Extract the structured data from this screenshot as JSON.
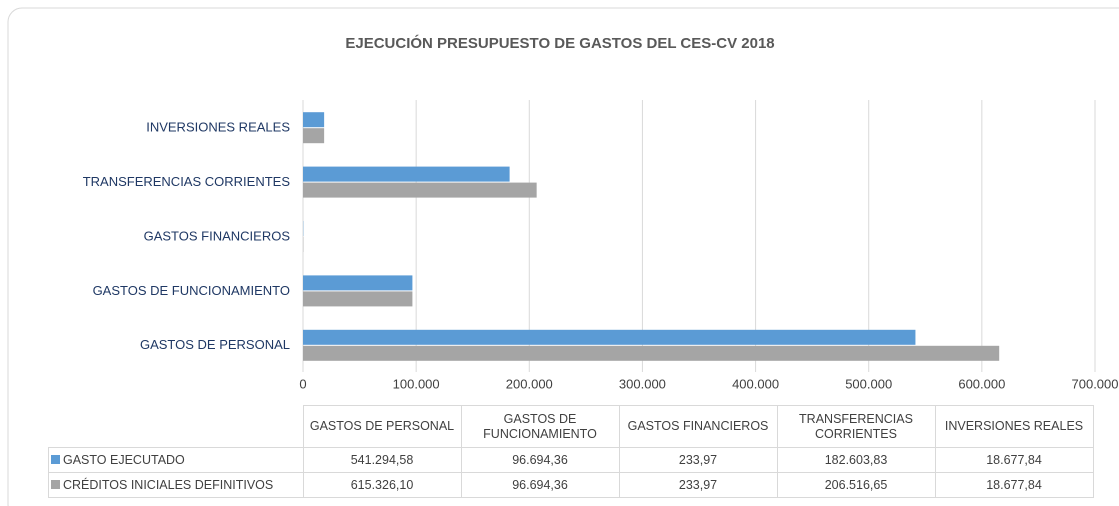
{
  "chart_data": {
    "type": "bar",
    "orientation": "horizontal",
    "title": "EJECUCIÓN PRESUPUESTO DE GASTOS DEL CES-CV 2018",
    "categories": [
      "GASTOS DE PERSONAL",
      "GASTOS DE FUNCIONAMIENTO",
      "GASTOS FINANCIEROS",
      "TRANSFERENCIAS CORRIENTES",
      "INVERSIONES REALES"
    ],
    "series": [
      {
        "name": "GASTO EJECUTADO",
        "color": "#5b9bd5",
        "values": [
          541294.58,
          96694.36,
          233.97,
          182603.83,
          18677.84
        ],
        "value_labels": [
          "541.294,58",
          "96.694,36",
          "233,97",
          "182.603,83",
          "18.677,84"
        ]
      },
      {
        "name": "CRÉDITOS INICIALES DEFINITIVOS",
        "color": "#a5a5a5",
        "values": [
          615326.1,
          96694.36,
          233.97,
          206516.65,
          18677.84
        ],
        "value_labels": [
          "615.326,10",
          "96.694,36",
          "233,97",
          "206.516,65",
          "18.677,84"
        ]
      }
    ],
    "xlim": [
      0,
      700000
    ],
    "xticks": [
      0,
      {
        "value": 100000,
        "label": "100.000"
      },
      {
        "value": 200000,
        "label": "200.000"
      },
      {
        "value": 300000,
        "label": "300.000"
      },
      {
        "value": 400000,
        "label": "400.000"
      },
      {
        "value": 500000,
        "label": "500.000"
      },
      {
        "value": 600000,
        "label": "600.000"
      },
      {
        "value": 700000,
        "label": "700.000"
      }
    ],
    "grid": true,
    "data_table": true
  }
}
